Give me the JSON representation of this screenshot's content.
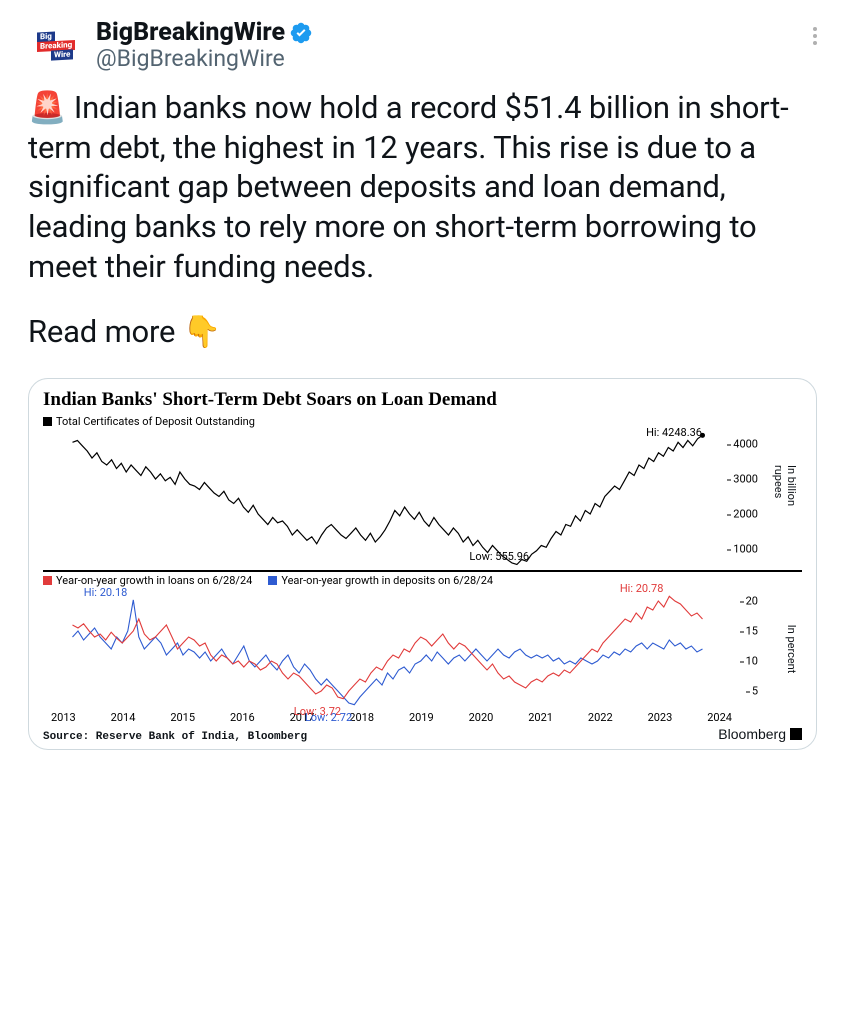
{
  "account": {
    "display_name": "BigBreakingWire",
    "handle": "@BigBreakingWire",
    "logo_text": [
      "Big",
      "Breaking",
      "Wire"
    ]
  },
  "tweet_body": {
    "p1": "🚨 Indian banks now hold a record $51.4 billion in short-term debt, the highest in 12 years. This rise is due to a significant gap between deposits and loan demand, leading banks to rely more on short-term borrowing to meet their funding needs.",
    "p2": "Read more 👇"
  },
  "chart": {
    "title": "Indian Banks' Short-Term Debt Soars on Loan Demand",
    "top_panel": {
      "legend": "Total Certificates of Deposit Outstanding",
      "y_unit_label": "In billion rupees",
      "yticks": [
        1000,
        2000,
        3000,
        4000
      ],
      "ylim": [
        400,
        4400
      ],
      "line_color": "#000000",
      "hi_label": "Hi: 4248.36",
      "low_label": "Low: 555.96",
      "values": [
        4050,
        4100,
        3950,
        3800,
        3600,
        3750,
        3500,
        3400,
        3550,
        3300,
        3450,
        3200,
        3400,
        3250,
        3100,
        3350,
        3200,
        3000,
        3150,
        2950,
        3050,
        2850,
        3200,
        3000,
        2850,
        2800,
        2700,
        2900,
        2750,
        2600,
        2500,
        2650,
        2400,
        2300,
        2450,
        2200,
        2050,
        2250,
        2000,
        1850,
        1700,
        1900,
        1750,
        1800,
        1650,
        1400,
        1550,
        1400,
        1250,
        1350,
        1150,
        1400,
        1600,
        1700,
        1550,
        1400,
        1300,
        1450,
        1600,
        1400,
        1250,
        1450,
        1200,
        1350,
        1550,
        1800,
        2100,
        1950,
        2200,
        2000,
        1850,
        2050,
        1800,
        1650,
        1900,
        1700,
        1550,
        1400,
        1600,
        1450,
        1200,
        1350,
        1100,
        1250,
        1050,
        900,
        1100,
        950,
        800,
        700,
        600,
        556,
        700,
        650,
        850,
        950,
        1100,
        1050,
        1300,
        1500,
        1400,
        1700,
        1650,
        1950,
        1800,
        2100,
        2000,
        2300,
        2200,
        2500,
        2650,
        2800,
        2700,
        2950,
        3200,
        3100,
        3400,
        3300,
        3600,
        3500,
        3750,
        3650,
        3900,
        3800,
        4050,
        3900,
        4100,
        3950,
        4150,
        4248
      ]
    },
    "bottom_panel": {
      "legend_loans": "Year-on-year growth in loans on 6/28/24",
      "legend_deposits": "Year-on-year growth in deposits on 6/28/24",
      "y_unit_label": "In percent",
      "yticks": [
        5,
        10,
        15,
        20
      ],
      "ylim": [
        2,
        22
      ],
      "loans_color": "#e13b3b",
      "deposits_color": "#2e5bd1",
      "hi_loans_label": "Hi: 20.78",
      "low_loans_label": "Low: 3.72",
      "hi_deposits_label": "Hi: 20.18",
      "low_deposits_label": "Low: 2.72",
      "loans_values": [
        16,
        15.5,
        16.2,
        15,
        14,
        14.5,
        13.5,
        14.8,
        13.8,
        13,
        14,
        15,
        17,
        14.5,
        13.5,
        14,
        15,
        16,
        14,
        12,
        13,
        14,
        13.5,
        12.5,
        13,
        11,
        10,
        11,
        10.5,
        9.5,
        10,
        9,
        10,
        9.5,
        8.5,
        9,
        10,
        9.5,
        8,
        7,
        8,
        7.5,
        6.5,
        5.5,
        4.5,
        5,
        6,
        5.5,
        4,
        3.72,
        5,
        6,
        7,
        6.5,
        8,
        9,
        8.5,
        10,
        11,
        10.5,
        12,
        11.5,
        13,
        14,
        13.5,
        12.5,
        13.5,
        14.5,
        13,
        12,
        13,
        12.5,
        11.5,
        10.5,
        9.5,
        8.5,
        9.5,
        8,
        7,
        7.5,
        6.5,
        6,
        5.5,
        6.5,
        7,
        6.5,
        7.5,
        8,
        7.5,
        8.5,
        8,
        9,
        10,
        11,
        12,
        11.5,
        13,
        14,
        15,
        16,
        17,
        16.5,
        18,
        17,
        19,
        18.5,
        20,
        19,
        20.78,
        20,
        19.5,
        18.5,
        17.5,
        18,
        17
      ],
      "deposits_values": [
        14,
        15,
        13.5,
        14.5,
        15.5,
        14,
        13,
        12,
        14,
        13,
        15,
        20.18,
        14,
        12,
        13,
        14,
        13,
        11,
        12,
        13,
        11,
        12,
        11.5,
        10.5,
        11.5,
        10,
        11,
        12,
        10.5,
        9.5,
        11,
        12.5,
        10,
        9,
        10,
        11,
        9.5,
        8.5,
        10,
        11,
        9,
        8,
        9.5,
        8.5,
        7,
        6,
        7,
        6,
        5,
        4,
        3,
        2.72,
        4,
        5,
        6,
        7,
        6,
        8,
        7,
        8.5,
        9,
        8,
        9.5,
        10,
        11,
        10,
        11.5,
        10.5,
        9.5,
        10.5,
        11,
        10,
        11,
        12,
        11,
        10,
        11,
        12,
        11,
        10.5,
        11.5,
        12,
        11,
        10.5,
        11,
        10.5,
        11,
        10,
        10.5,
        9.5,
        10,
        9.5,
        10.5,
        10,
        9.5,
        10,
        11,
        10.5,
        11.5,
        11,
        12,
        11.5,
        12.5,
        13,
        12,
        13,
        12.5,
        12,
        13.5,
        12.5,
        13,
        12,
        12.5,
        11.5,
        12
      ]
    },
    "xaxis_labels": [
      "2013",
      "2014",
      "2015",
      "2016",
      "2017",
      "2018",
      "2019",
      "2020",
      "2021",
      "2022",
      "2023",
      "2024"
    ],
    "source": "Source: Reserve Bank of India, Bloomberg",
    "provider": "Bloomberg"
  },
  "colors": {
    "text": "#0f1419",
    "muted": "#536471",
    "border": "#cfd9de",
    "verified": "#1d9bf0"
  }
}
